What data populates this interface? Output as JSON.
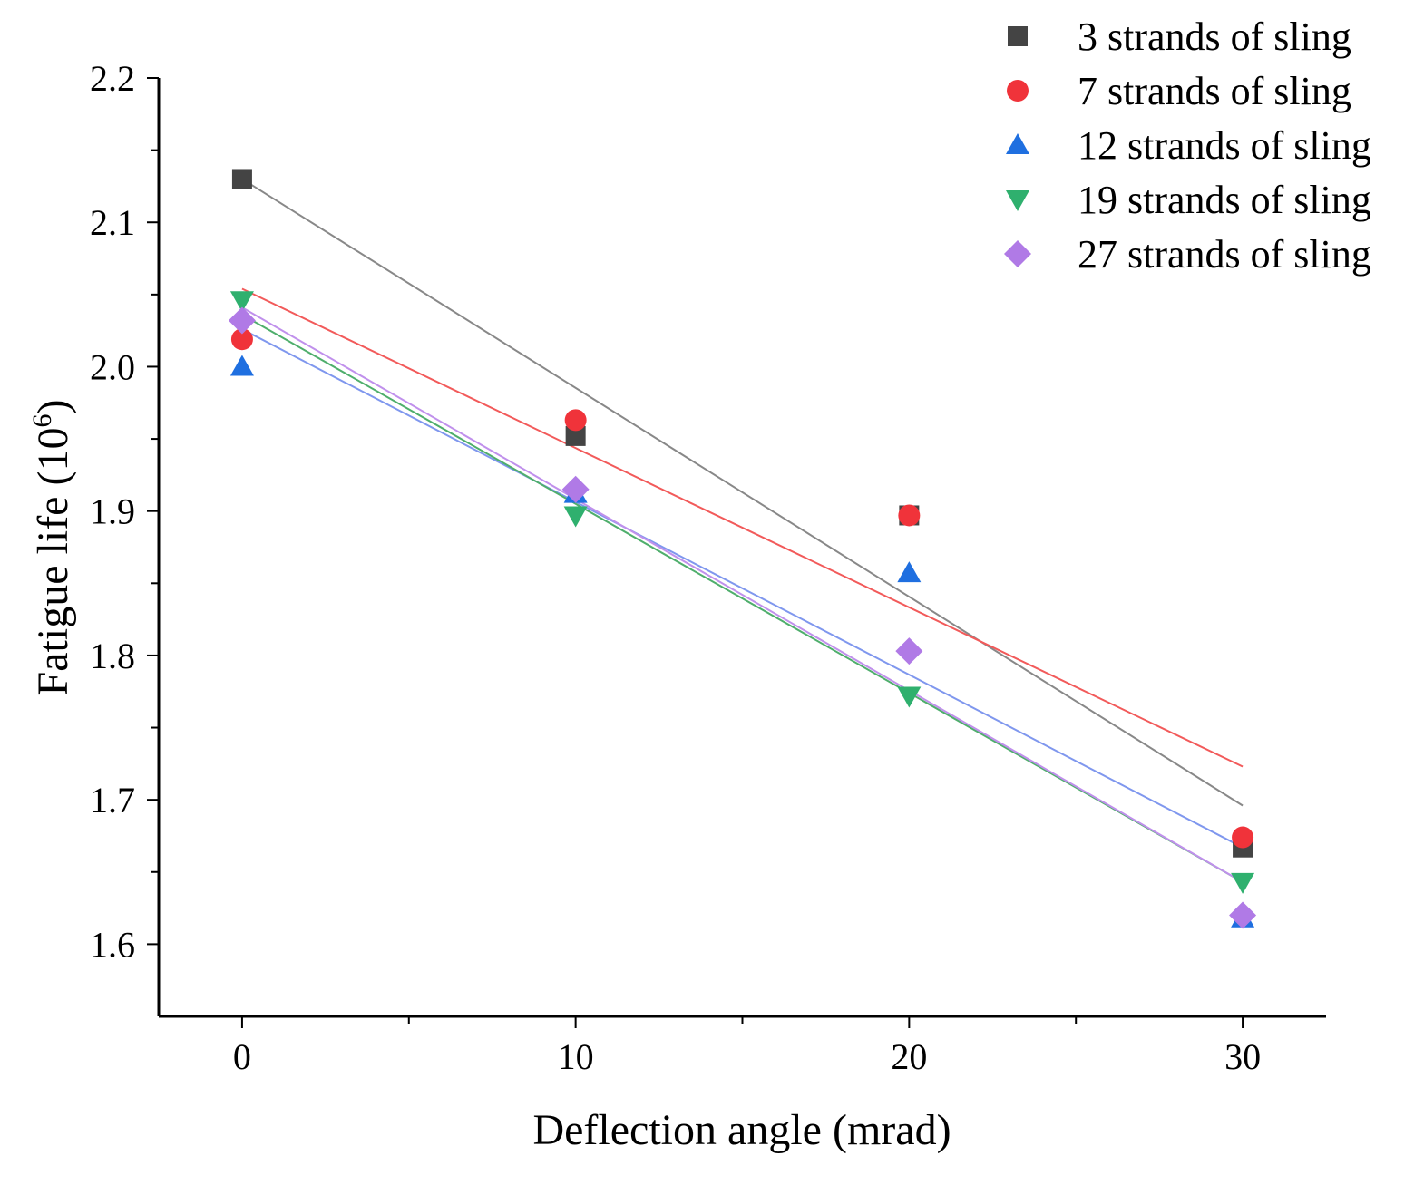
{
  "chart_data": {
    "type": "scatter",
    "title": "",
    "xlabel": "Deflection angle (mrad)",
    "ylabel_base": "Fatigue life (10",
    "ylabel_sup": "6",
    "ylabel_close": ")",
    "xlim": [
      -2.5,
      32.5
    ],
    "ylim": [
      1.55,
      2.2
    ],
    "x": [
      0,
      10,
      20,
      30
    ],
    "x_ticks": [
      0,
      10,
      20,
      30
    ],
    "x_tick_labels": [
      "0",
      "10",
      "20",
      "30"
    ],
    "x_minor_ticks": [
      5,
      15,
      25
    ],
    "y_ticks": [
      1.6,
      1.7,
      1.8,
      1.9,
      2.0,
      2.1,
      2.2
    ],
    "y_tick_labels": [
      "1.6",
      "1.7",
      "1.8",
      "1.9",
      "2.0",
      "2.1",
      "2.2"
    ],
    "y_minor_ticks": [
      1.65,
      1.75,
      1.85,
      1.95,
      2.05,
      2.15
    ],
    "grid": false,
    "legend_position": "top-right",
    "series": [
      {
        "name": "3 strands of sling",
        "marker": "square",
        "color": "#444444",
        "line_color": "#888888",
        "values": [
          2.13,
          1.952,
          1.897,
          1.667
        ],
        "fit": [
          2.13,
          1.696
        ]
      },
      {
        "name": "7 strands of sling",
        "marker": "circle",
        "color": "#f0333a",
        "line_color": "#f25a5a",
        "values": [
          2.019,
          1.963,
          1.897,
          1.674
        ],
        "fit": [
          2.054,
          1.723
        ]
      },
      {
        "name": "12 strands of sling",
        "marker": "triangle-up",
        "color": "#1f6fe0",
        "line_color": "#7f97ee",
        "values": [
          2.0,
          1.912,
          1.857,
          1.618
        ],
        "fit": [
          2.026,
          1.667
        ]
      },
      {
        "name": "19 strands of sling",
        "marker": "triangle-down",
        "color": "#2fb06e",
        "line_color": "#4fae6c",
        "values": [
          2.046,
          1.897,
          1.772,
          1.643
        ],
        "fit": [
          2.036,
          1.643
        ]
      },
      {
        "name": "27 strands of sling",
        "marker": "diamond",
        "color": "#b07ae6",
        "line_color": "#c090ec",
        "values": [
          2.032,
          1.915,
          1.803,
          1.62
        ],
        "fit": [
          2.041,
          1.643
        ]
      }
    ]
  }
}
